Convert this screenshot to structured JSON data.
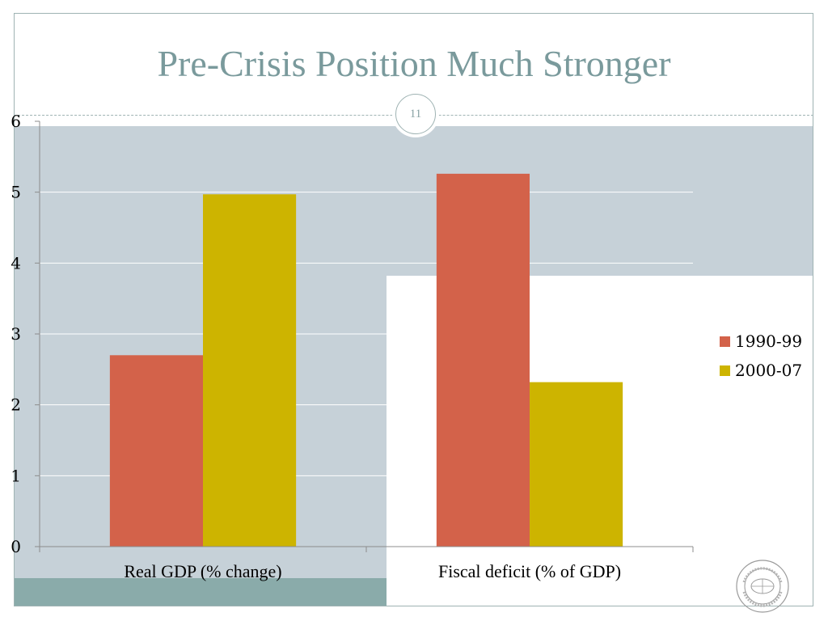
{
  "slide": {
    "title": "Pre-Crisis Position Much Stronger",
    "page_number": "11"
  },
  "colors": {
    "series1": "#d3624a",
    "series2": "#cdb400",
    "title": "#7a9a9c",
    "plot_bg": "#c6d1d8",
    "accent_strip": "#8aabaa"
  },
  "chart_data": {
    "type": "bar",
    "categories": [
      "Real GDP (% change)",
      "Fiscal deficit (% of GDP)"
    ],
    "series": [
      {
        "name": "1990-99",
        "values": [
          2.7,
          5.26
        ]
      },
      {
        "name": "2000-07",
        "values": [
          4.97,
          2.32
        ]
      }
    ],
    "ylim": [
      0,
      6
    ],
    "yticks": [
      0,
      1,
      2,
      3,
      4,
      5,
      6
    ],
    "grid": true,
    "legend": "right",
    "title": "",
    "xlabel": "",
    "ylabel": ""
  },
  "logo": {
    "name": "seal-icon",
    "text": "INTERNATIONAL MONETARY FUND"
  }
}
